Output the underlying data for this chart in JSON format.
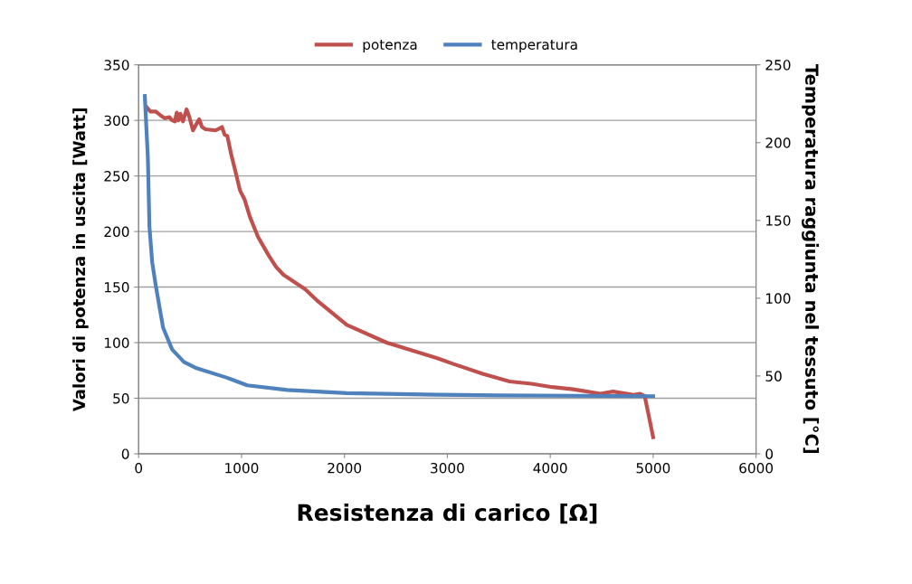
{
  "chart_data": {
    "type": "line",
    "xlabel": "Resistenza di carico [Ω]",
    "ylabel": "Valori di potenza in uscita [Watt]",
    "y2label": "Temperatura raggiunta nel tessuto [°C]",
    "xlim": [
      0,
      6000
    ],
    "xticks": [
      0,
      1000,
      2000,
      3000,
      4000,
      5000,
      6000
    ],
    "ylim": [
      0,
      350
    ],
    "yticks": [
      0,
      50,
      100,
      150,
      200,
      250,
      300,
      350
    ],
    "y2lim": [
      0,
      250
    ],
    "y2ticks": [
      0,
      50,
      100,
      150,
      200,
      250
    ],
    "grid": "y",
    "legend": "top",
    "marker": "none",
    "line_style": "solid",
    "series": [
      {
        "name": "potenza",
        "color": "#c0504d",
        "x": [
          77,
          114,
          167,
          220,
          255,
          299,
          325,
          352,
          370,
          387,
          405,
          431,
          466,
          493,
          528,
          563,
          589,
          616,
          651,
          748,
          810,
          836,
          862,
          898,
          941,
          985,
          1029,
          1082,
          1161,
          1267,
          1337,
          1408,
          1619,
          1733,
          2023,
          2410,
          2903,
          3053,
          3343,
          3607,
          3817,
          4020,
          4223,
          4487,
          4610,
          4812,
          4874,
          4918,
          5000
        ],
        "values": [
          312,
          308,
          308,
          304,
          302,
          303,
          300,
          299,
          307,
          300,
          306,
          299,
          310,
          303,
          291,
          297,
          301,
          294,
          292,
          291,
          294,
          287,
          286,
          270,
          254,
          237,
          229,
          213,
          195,
          178,
          168,
          161,
          148,
          138,
          116,
          100,
          86,
          81,
          72,
          65,
          63,
          60,
          58,
          54,
          56,
          53,
          54,
          52,
          15
        ]
      },
      {
        "name": "temperatura",
        "color": "#4f81bd",
        "axis": "y2",
        "x": [
          60,
          90,
          105,
          132,
          167,
          238,
          326,
          440,
          563,
          853,
          1056,
          1443,
          2023,
          2903,
          3492,
          5000
        ],
        "values": [
          230,
          190,
          146,
          123,
          108,
          81,
          67,
          59,
          55,
          49,
          44,
          41,
          39,
          38,
          37.5,
          37
        ]
      }
    ]
  }
}
